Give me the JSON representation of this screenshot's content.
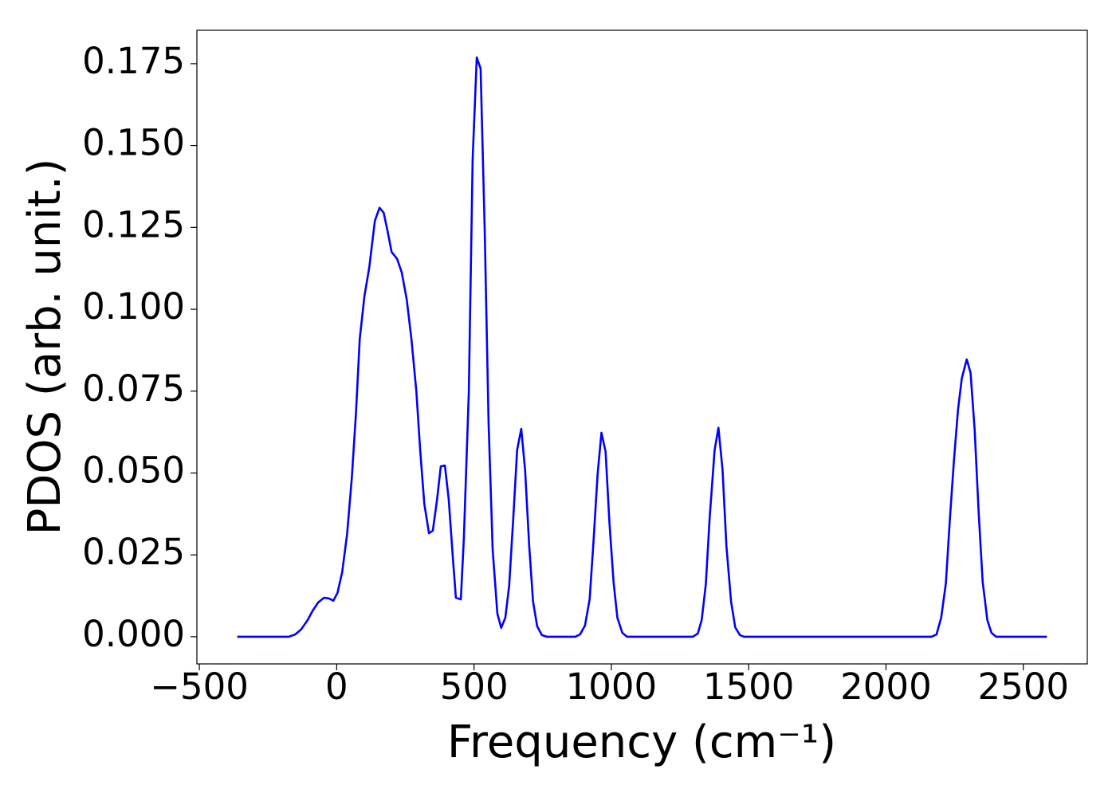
{
  "chart_data": {
    "type": "line",
    "xlabel": "Frequency (cm⁻¹)",
    "ylabel": "PDOS (arb. unit.)",
    "x": [
      -362,
      -174,
      -151,
      -130,
      -107,
      -87,
      -67,
      -46,
      -29,
      -12,
      3,
      20,
      38,
      55,
      70,
      84,
      101,
      119,
      139,
      156,
      171,
      185,
      200,
      220,
      237,
      255,
      272,
      290,
      304,
      319,
      336,
      350,
      365,
      379,
      394,
      408,
      423,
      434,
      452,
      463,
      481,
      495,
      510,
      524,
      539,
      553,
      568,
      585,
      599,
      614,
      628,
      643,
      657,
      672,
      686,
      701,
      715,
      730,
      747,
      765,
      869,
      886,
      904,
      921,
      935,
      950,
      964,
      979,
      993,
      1008,
      1022,
      1040,
      1057,
      1297,
      1315,
      1329,
      1344,
      1358,
      1376,
      1390,
      1405,
      1419,
      1436,
      1451,
      1468,
      1483,
      2166,
      2184,
      2201,
      2218,
      2233,
      2247,
      2262,
      2276,
      2294,
      2308,
      2323,
      2337,
      2352,
      2369,
      2384,
      2401,
      2586
    ],
    "series": [
      {
        "color": "#0000ff",
        "values": [
          0,
          0,
          0.0007,
          0.0022,
          0.0049,
          0.008,
          0.0105,
          0.0119,
          0.0117,
          0.011,
          0.0134,
          0.0197,
          0.0314,
          0.0484,
          0.068,
          0.091,
          0.104,
          0.113,
          0.127,
          0.131,
          0.1295,
          0.124,
          0.1175,
          0.1154,
          0.1112,
          0.103,
          0.091,
          0.075,
          0.057,
          0.0406,
          0.0316,
          0.0324,
          0.0416,
          0.052,
          0.0523,
          0.0419,
          0.0241,
          0.0119,
          0.0114,
          0.03,
          0.0745,
          0.1458,
          0.1769,
          0.1735,
          0.1239,
          0.0655,
          0.0265,
          0.0071,
          0.0027,
          0.0058,
          0.0156,
          0.0363,
          0.057,
          0.0635,
          0.0509,
          0.0277,
          0.0107,
          0.0032,
          0.0005,
          0,
          0,
          0.0007,
          0.0034,
          0.0114,
          0.029,
          0.0496,
          0.0623,
          0.0565,
          0.035,
          0.0168,
          0.0058,
          0.0012,
          0,
          0,
          0.001,
          0.0051,
          0.016,
          0.0363,
          0.057,
          0.0638,
          0.0509,
          0.0277,
          0.0107,
          0.0029,
          0.0005,
          0,
          0,
          0.0007,
          0.0058,
          0.0163,
          0.0363,
          0.0533,
          0.0691,
          0.0789,
          0.0847,
          0.0806,
          0.063,
          0.0387,
          0.0168,
          0.0051,
          0.0012,
          0,
          0
        ]
      }
    ],
    "xlim": [
      -509,
      2733
    ],
    "ylim": [
      -0.0083,
      0.1852
    ],
    "xticks": [
      {
        "value": -500,
        "label": "−500"
      },
      0,
      500,
      1000,
      1500,
      2000,
      2500
    ],
    "yticks": [
      {
        "value": 0,
        "label": "0.000"
      },
      {
        "value": 0.025,
        "label": "0.025"
      },
      {
        "value": 0.05,
        "label": "0.050"
      },
      {
        "value": 0.075,
        "label": "0.075"
      },
      {
        "value": 0.1,
        "label": "0.100"
      },
      {
        "value": 0.125,
        "label": "0.125"
      },
      {
        "value": 0.15,
        "label": "0.150"
      },
      {
        "value": 0.175,
        "label": "0.175"
      }
    ],
    "grid": false
  }
}
